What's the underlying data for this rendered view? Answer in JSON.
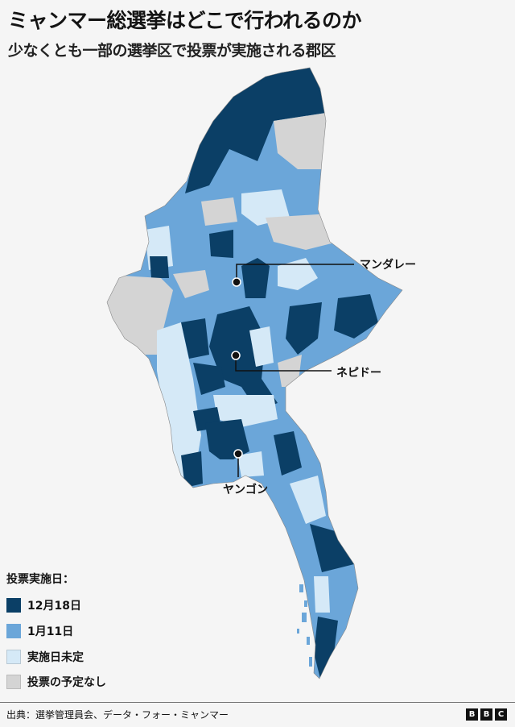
{
  "header": {
    "title": "ミャンマー総選挙はどこで行われるのか",
    "subtitle": "少なくとも一部の選挙区で投票が実施される郡区"
  },
  "map": {
    "cities": [
      {
        "name": "マンダレー"
      },
      {
        "name": "ネピドー"
      },
      {
        "name": "ヤンゴン"
      }
    ]
  },
  "legend": {
    "title": "投票実施日：",
    "items": [
      {
        "label": "12月18日",
        "color": "#0b3f66"
      },
      {
        "label": "1月11日",
        "color": "#6ba6d9"
      },
      {
        "label": "実施日未定",
        "color": "#d5e9f7"
      },
      {
        "label": "投票の予定なし",
        "color": "#d4d4d4"
      }
    ]
  },
  "footer": {
    "source": "出典：選挙管理員会、データ・フォー・ミャンマー",
    "logo": "BBC"
  }
}
